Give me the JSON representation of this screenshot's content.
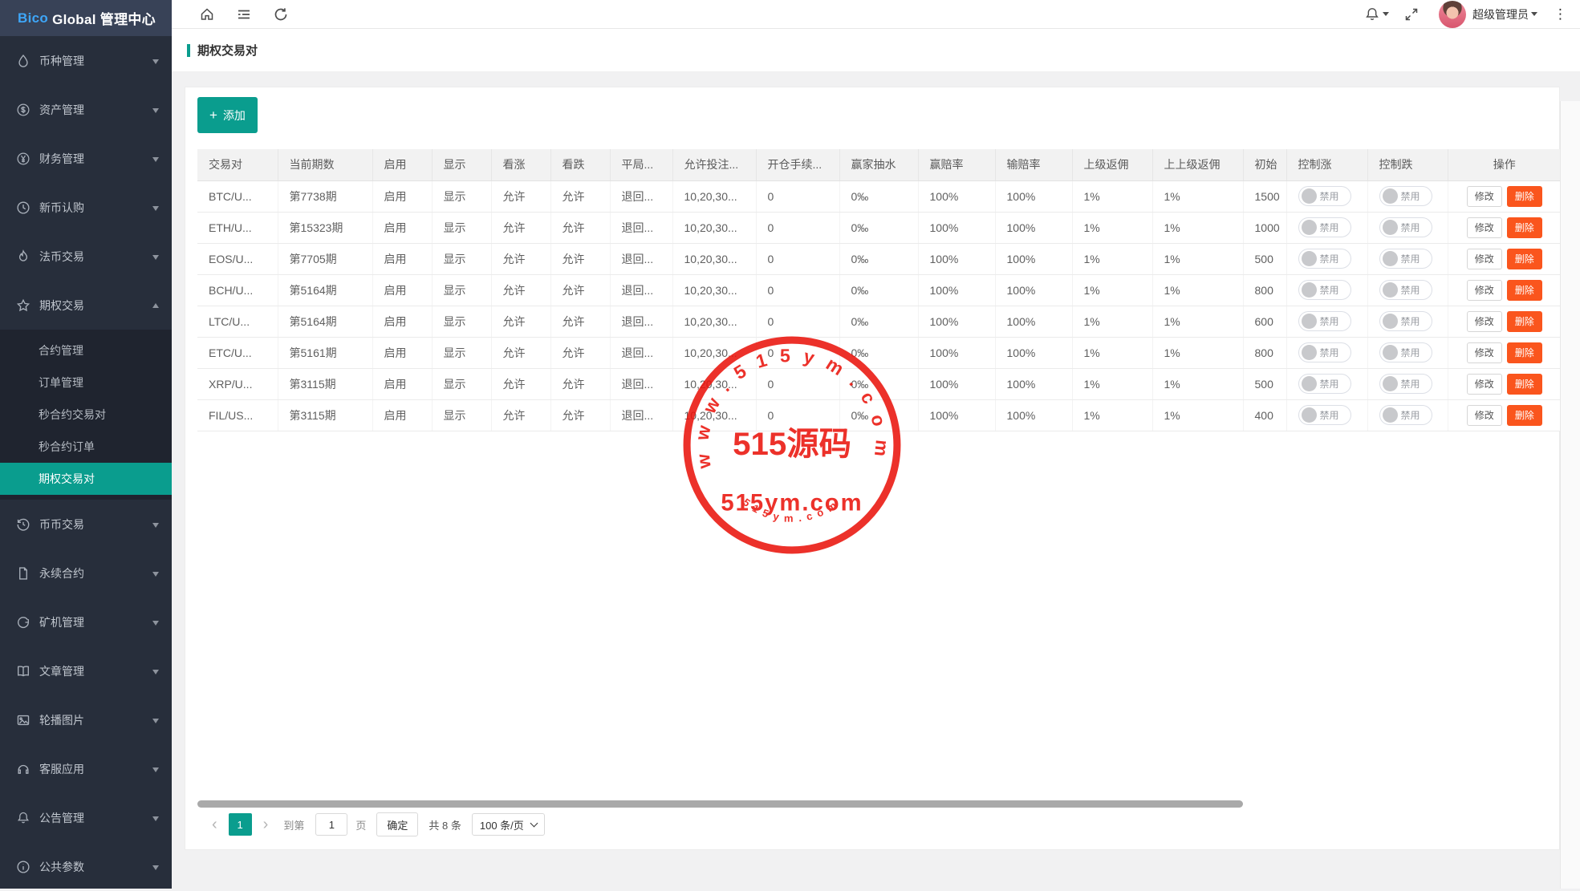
{
  "brand": {
    "highlight": "Bico",
    "rest": " Global 管理中心"
  },
  "topbar": {
    "left_icons": [
      "home-icon",
      "collapse-menu-icon",
      "refresh-icon"
    ],
    "right_icons": [
      "bell-icon",
      "expand-icon"
    ],
    "user": "超级管理员",
    "more_icon": "kebab-menu-icon"
  },
  "sidebar": {
    "items": [
      {
        "icon": "drop-icon",
        "label": "币种管理"
      },
      {
        "icon": "dollar-circle-icon",
        "label": "资产管理"
      },
      {
        "icon": "yen-circle-icon",
        "label": "财务管理"
      },
      {
        "icon": "clock-icon",
        "label": "新币认购"
      },
      {
        "icon": "fire-icon",
        "label": "法币交易"
      },
      {
        "icon": "star-icon",
        "label": "期权交易",
        "expanded": true,
        "children": [
          {
            "label": "合约管理"
          },
          {
            "label": "订单管理"
          },
          {
            "label": "秒合约交易对"
          },
          {
            "label": "秒合约订单"
          },
          {
            "label": "期权交易对",
            "active": true
          }
        ]
      },
      {
        "icon": "history-icon",
        "label": "币币交易"
      },
      {
        "icon": "file-icon",
        "label": "永续合约"
      },
      {
        "icon": "miner-icon",
        "label": "矿机管理"
      },
      {
        "icon": "book-icon",
        "label": "文章管理"
      },
      {
        "icon": "image-icon",
        "label": "轮播图片"
      },
      {
        "icon": "headset-icon",
        "label": "客服应用"
      },
      {
        "icon": "bell-icon",
        "label": "公告管理"
      },
      {
        "icon": "info-circle-icon",
        "label": "公共参数"
      }
    ]
  },
  "page": {
    "title": "期权交易对",
    "add_button": "添加"
  },
  "table": {
    "toggle_label": "禁用",
    "edit_label": "修改",
    "delete_label": "删除",
    "columns": [
      {
        "key": "pair",
        "label": "交易对",
        "sortable": true
      },
      {
        "key": "period",
        "label": "当前期数",
        "sortable": true
      },
      {
        "key": "enabled",
        "label": "启用",
        "sortable": true
      },
      {
        "key": "shown",
        "label": "显示",
        "sortable": true
      },
      {
        "key": "up",
        "label": "看涨",
        "sortable": true
      },
      {
        "key": "down",
        "label": "看跌"
      },
      {
        "key": "draw",
        "label": "平局..."
      },
      {
        "key": "bets",
        "label": "允许投注..."
      },
      {
        "key": "fee",
        "label": "开仓手续..."
      },
      {
        "key": "rake",
        "label": "赢家抽水"
      },
      {
        "key": "win_odds",
        "label": "赢赔率"
      },
      {
        "key": "lose_odds",
        "label": "输赔率"
      },
      {
        "key": "rebate1",
        "label": "上级返佣"
      },
      {
        "key": "rebate2",
        "label": "上上级返佣"
      },
      {
        "key": "initial",
        "label": "初始"
      },
      {
        "key": "control_up",
        "label": "控制涨",
        "fixed": true
      },
      {
        "key": "control_down",
        "label": "控制跌",
        "fixed": true
      },
      {
        "key": "actions",
        "label": "操作",
        "fixed": true
      }
    ],
    "rows": [
      {
        "pair": "BTC/U...",
        "period": "第7738期",
        "enabled": "启用",
        "shown": "显示",
        "up": "允许",
        "down": "允许",
        "draw": "退回...",
        "bets": "10,20,30...",
        "fee": "0",
        "rake": "0‰",
        "win_odds": "100%",
        "lose_odds": "100%",
        "rebate1": "1%",
        "rebate2": "1%",
        "initial": "1500"
      },
      {
        "pair": "ETH/U...",
        "period": "第15323期",
        "enabled": "启用",
        "shown": "显示",
        "up": "允许",
        "down": "允许",
        "draw": "退回...",
        "bets": "10,20,30...",
        "fee": "0",
        "rake": "0‰",
        "win_odds": "100%",
        "lose_odds": "100%",
        "rebate1": "1%",
        "rebate2": "1%",
        "initial": "1000"
      },
      {
        "pair": "EOS/U...",
        "period": "第7705期",
        "enabled": "启用",
        "shown": "显示",
        "up": "允许",
        "down": "允许",
        "draw": "退回...",
        "bets": "10,20,30...",
        "fee": "0",
        "rake": "0‰",
        "win_odds": "100%",
        "lose_odds": "100%",
        "rebate1": "1%",
        "rebate2": "1%",
        "initial": "500"
      },
      {
        "pair": "BCH/U...",
        "period": "第5164期",
        "enabled": "启用",
        "shown": "显示",
        "up": "允许",
        "down": "允许",
        "draw": "退回...",
        "bets": "10,20,30...",
        "fee": "0",
        "rake": "0‰",
        "win_odds": "100%",
        "lose_odds": "100%",
        "rebate1": "1%",
        "rebate2": "1%",
        "initial": "800"
      },
      {
        "pair": "LTC/U...",
        "period": "第5164期",
        "enabled": "启用",
        "shown": "显示",
        "up": "允许",
        "down": "允许",
        "draw": "退回...",
        "bets": "10,20,30...",
        "fee": "0",
        "rake": "0‰",
        "win_odds": "100%",
        "lose_odds": "100%",
        "rebate1": "1%",
        "rebate2": "1%",
        "initial": "600"
      },
      {
        "pair": "ETC/U...",
        "period": "第5161期",
        "enabled": "启用",
        "shown": "显示",
        "up": "允许",
        "down": "允许",
        "draw": "退回...",
        "bets": "10,20,30...",
        "fee": "0",
        "rake": "0‰",
        "win_odds": "100%",
        "lose_odds": "100%",
        "rebate1": "1%",
        "rebate2": "1%",
        "initial": "800"
      },
      {
        "pair": "XRP/U...",
        "period": "第3115期",
        "enabled": "启用",
        "shown": "显示",
        "up": "允许",
        "down": "允许",
        "draw": "退回...",
        "bets": "10,20,30...",
        "fee": "0",
        "rake": "0‰",
        "win_odds": "100%",
        "lose_odds": "100%",
        "rebate1": "1%",
        "rebate2": "1%",
        "initial": "500"
      },
      {
        "pair": "FIL/US...",
        "period": "第3115期",
        "enabled": "启用",
        "shown": "显示",
        "up": "允许",
        "down": "允许",
        "draw": "退回...",
        "bets": "10,20,30...",
        "fee": "0",
        "rake": "0‰",
        "win_odds": "100%",
        "lose_odds": "100%",
        "rebate1": "1%",
        "rebate2": "1%",
        "initial": "400"
      }
    ]
  },
  "pagination": {
    "current_page": "1",
    "goto_label": "到第",
    "goto_value": "1",
    "page_unit": "页",
    "confirm_label": "确定",
    "total_label": "共 8 条",
    "page_size": "100 条/页"
  },
  "watermark": {
    "center_text": "515源码",
    "site_text": "515ym.com",
    "arc_top": "www.515ym.com",
    "arc_bottom": "515ym.com"
  },
  "colors": {
    "accent": "#0a9d8e",
    "delete": "#fa551d",
    "stamp": "#ea150d"
  }
}
